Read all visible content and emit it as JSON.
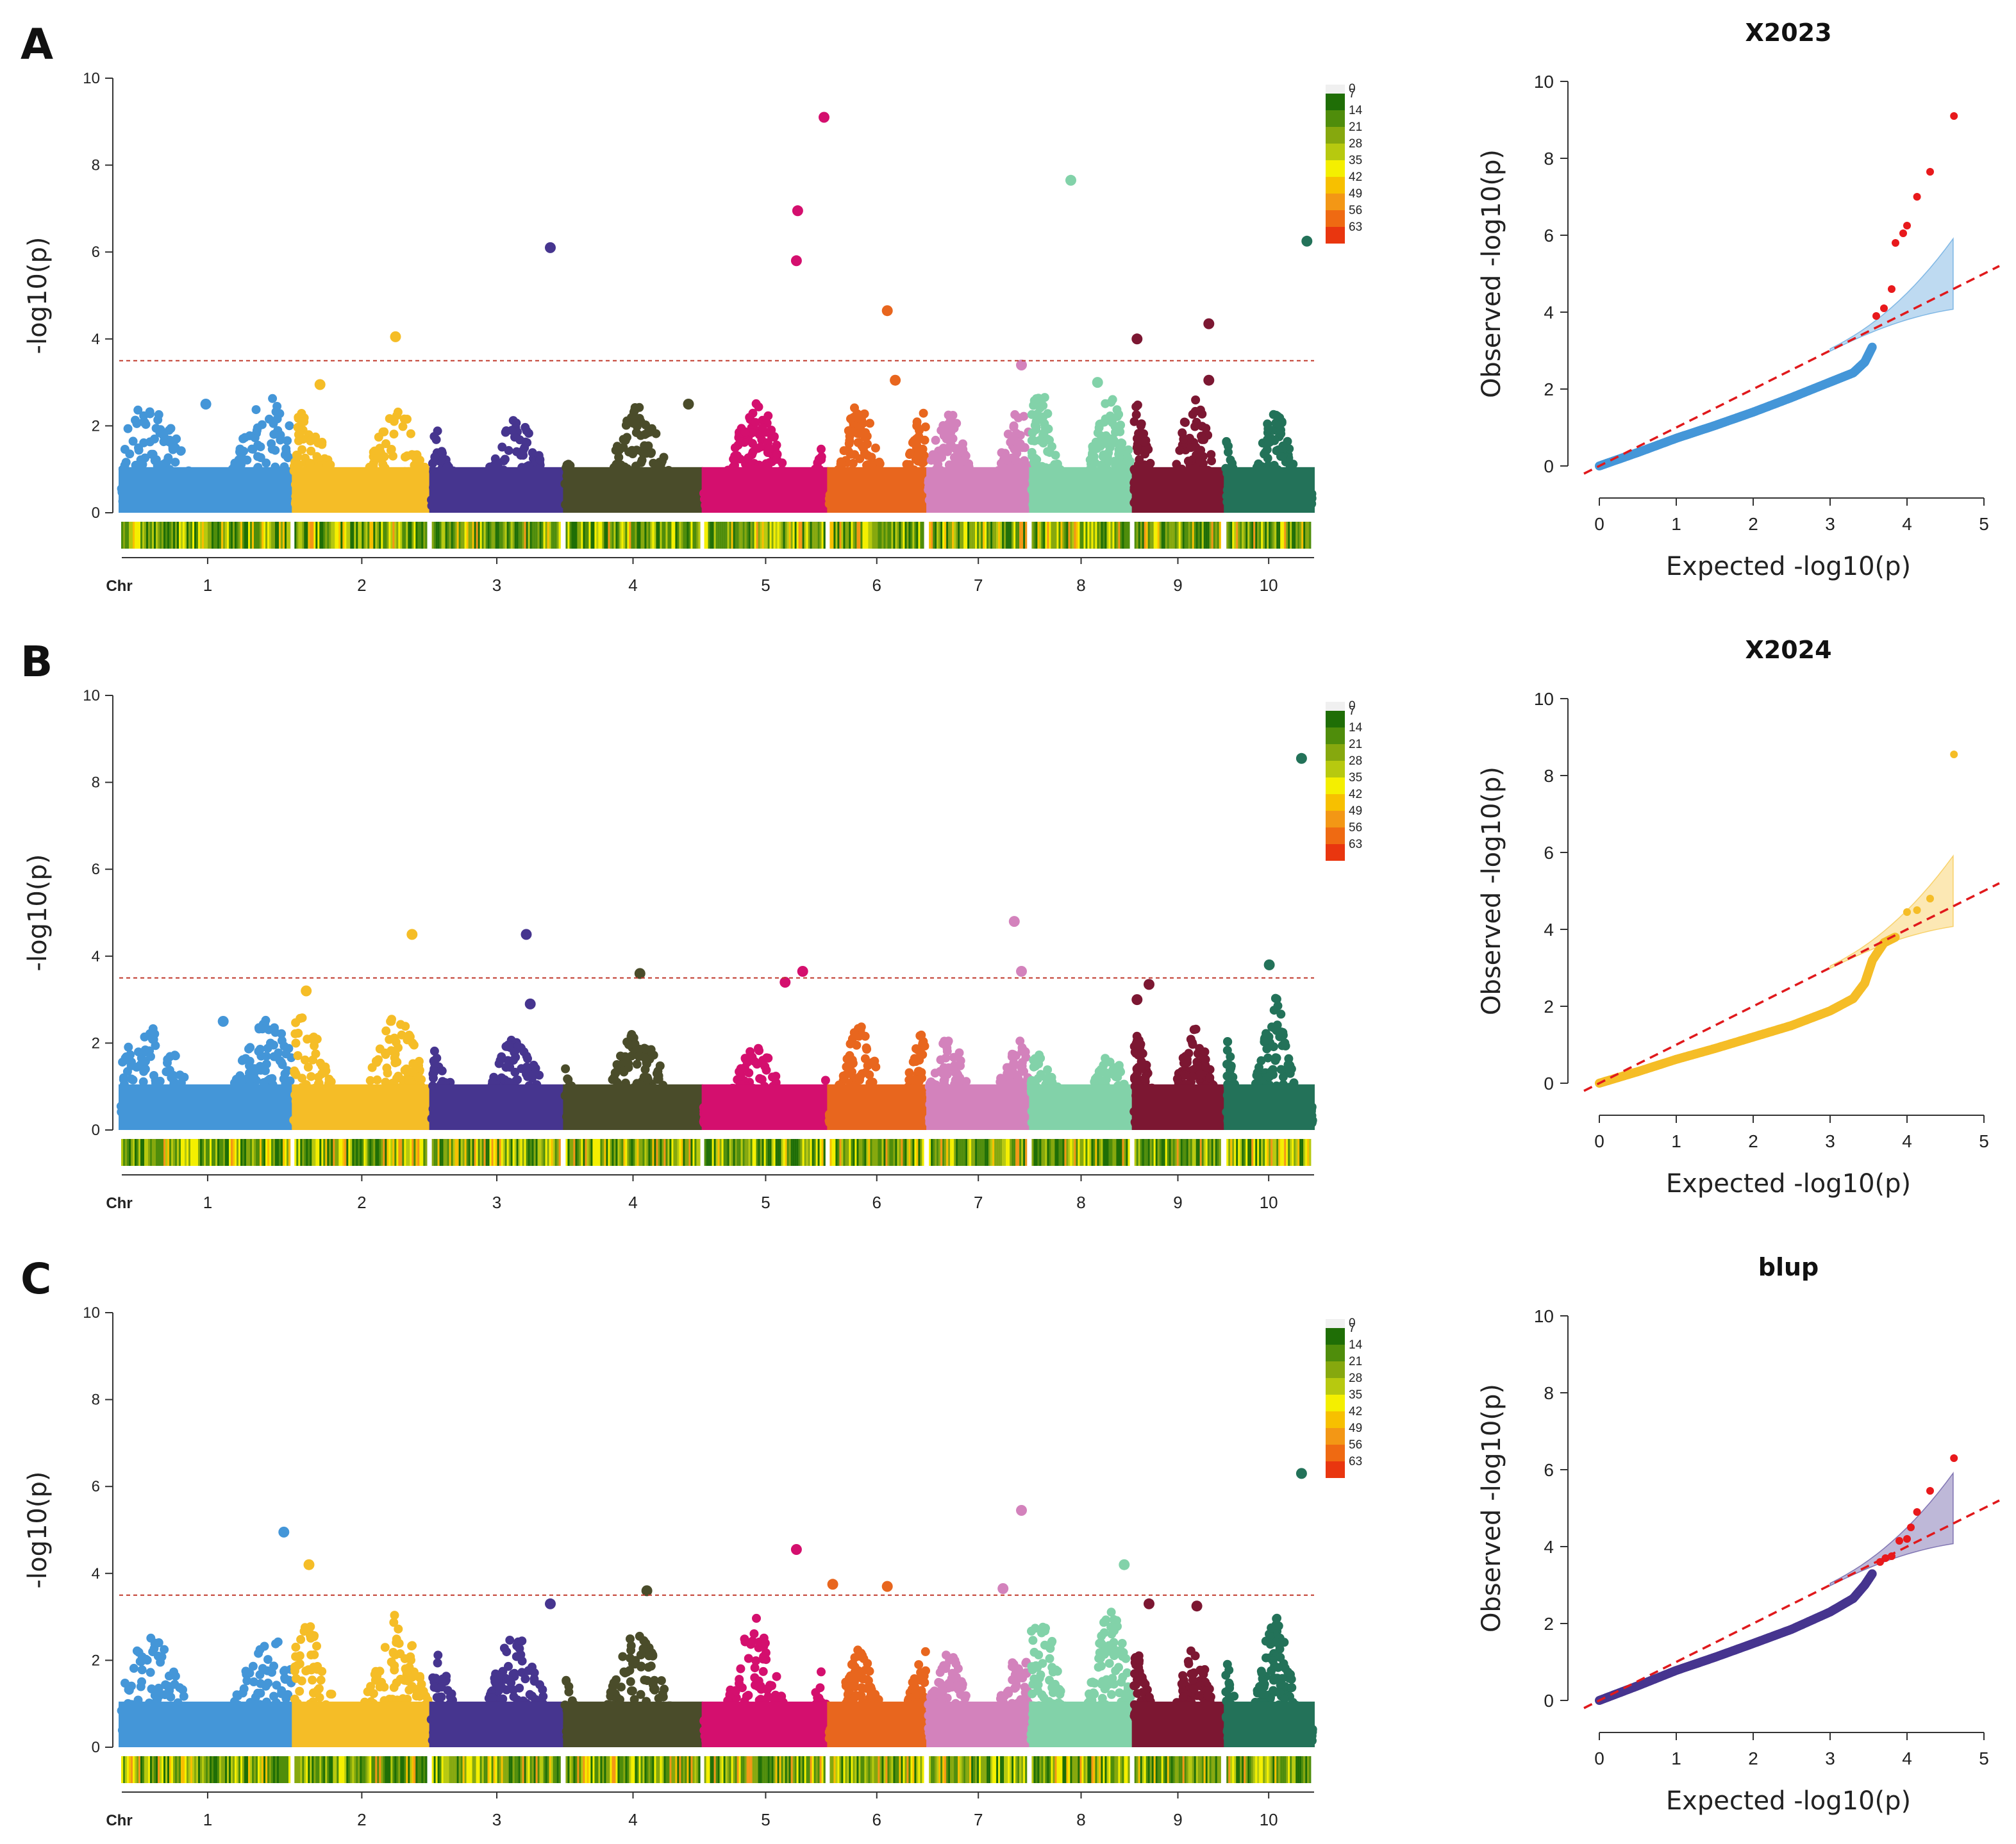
{
  "chromosome_colors": [
    "#4496d8",
    "#f5bd27",
    "#46358f",
    "#4a4c2a",
    "#d40f6e",
    "#e8661e",
    "#d382bc",
    "#82d2a9",
    "#7c1732",
    "#237259"
  ],
  "density_legend": {
    "values": [
      "0",
      "7",
      "14",
      "21",
      "28",
      "35",
      "42",
      "49",
      "56",
      "63"
    ],
    "colors": [
      "#f0f0f0",
      "#1f6e06",
      "#4f8d0b",
      "#86a80e",
      "#b7c90f",
      "#f4ef00",
      "#f7c000",
      "#f39715",
      "#ef6a12",
      "#e9360f"
    ]
  },
  "chart_data": [
    {
      "type": "scatter",
      "name": "manhattan",
      "panel_label": "A",
      "ylabel": "-log10(p)",
      "ylim": [
        0,
        10
      ],
      "yticks": [
        "0",
        "2",
        "4",
        "6",
        "8",
        "10"
      ],
      "threshold": 3.5,
      "chr_axis_title": "Chr",
      "chromosomes": [
        "1",
        "2",
        "3",
        "4",
        "5",
        "6",
        "7",
        "8",
        "9",
        "10"
      ],
      "chromosome_base_max": [
        2.5,
        2.3,
        2.1,
        2.3,
        2.5,
        2.4,
        2.2,
        2.6,
        2.5,
        2.3
      ],
      "highlight_points": [
        {
          "chr": 1,
          "pos": 0.5,
          "y": 2.5
        },
        {
          "chr": 2,
          "pos": 0.2,
          "y": 2.95
        },
        {
          "chr": 2,
          "pos": 0.75,
          "y": 4.05
        },
        {
          "chr": 3,
          "pos": 0.9,
          "y": 6.1
        },
        {
          "chr": 4,
          "pos": 0.9,
          "y": 2.5
        },
        {
          "chr": 5,
          "pos": 0.75,
          "y": 5.8
        },
        {
          "chr": 5,
          "pos": 0.76,
          "y": 6.95
        },
        {
          "chr": 5,
          "pos": 0.97,
          "y": 9.1
        },
        {
          "chr": 6,
          "pos": 0.6,
          "y": 4.65
        },
        {
          "chr": 6,
          "pos": 0.68,
          "y": 3.05
        },
        {
          "chr": 7,
          "pos": 0.92,
          "y": 3.4
        },
        {
          "chr": 8,
          "pos": 0.4,
          "y": 7.65
        },
        {
          "chr": 8,
          "pos": 0.66,
          "y": 3.0
        },
        {
          "chr": 9,
          "pos": 0.05,
          "y": 4.0
        },
        {
          "chr": 9,
          "pos": 0.83,
          "y": 4.35
        },
        {
          "chr": 9,
          "pos": 0.83,
          "y": 3.05
        },
        {
          "chr": 10,
          "pos": 0.92,
          "y": 6.25
        }
      ]
    },
    {
      "type": "scatter",
      "name": "manhattan",
      "panel_label": "B",
      "ylabel": "-log10(p)",
      "ylim": [
        0,
        10
      ],
      "yticks": [
        "0",
        "2",
        "4",
        "6",
        "8",
        "10"
      ],
      "threshold": 3.5,
      "chr_axis_title": "Chr",
      "chromosomes": [
        "1",
        "2",
        "3",
        "4",
        "5",
        "6",
        "7",
        "8",
        "9",
        "10"
      ],
      "chromosome_base_max": [
        2.4,
        2.5,
        2.0,
        2.2,
        1.8,
        2.3,
        2.0,
        1.6,
        2.2,
        2.9
      ],
      "highlight_points": [
        {
          "chr": 1,
          "pos": 0.6,
          "y": 2.5
        },
        {
          "chr": 2,
          "pos": 0.1,
          "y": 3.2
        },
        {
          "chr": 2,
          "pos": 0.87,
          "y": 4.5
        },
        {
          "chr": 3,
          "pos": 0.72,
          "y": 4.5
        },
        {
          "chr": 3,
          "pos": 0.75,
          "y": 2.9
        },
        {
          "chr": 4,
          "pos": 0.55,
          "y": 3.6
        },
        {
          "chr": 5,
          "pos": 0.66,
          "y": 3.4
        },
        {
          "chr": 5,
          "pos": 0.8,
          "y": 3.65
        },
        {
          "chr": 7,
          "pos": 0.85,
          "y": 4.8
        },
        {
          "chr": 7,
          "pos": 0.92,
          "y": 3.65
        },
        {
          "chr": 9,
          "pos": 0.05,
          "y": 3.0
        },
        {
          "chr": 9,
          "pos": 0.18,
          "y": 3.35
        },
        {
          "chr": 10,
          "pos": 0.5,
          "y": 3.8
        },
        {
          "chr": 10,
          "pos": 0.86,
          "y": 8.55
        }
      ]
    },
    {
      "type": "scatter",
      "name": "manhattan",
      "panel_label": "C",
      "ylabel": "-log10(p)",
      "ylim": [
        0,
        10
      ],
      "yticks": [
        "0",
        "2",
        "4",
        "6",
        "8",
        "10"
      ],
      "threshold": 3.5,
      "chr_axis_title": "Chr",
      "chromosomes": [
        "1",
        "2",
        "3",
        "4",
        "5",
        "6",
        "7",
        "8",
        "9",
        "10"
      ],
      "chromosome_base_max": [
        2.4,
        2.9,
        2.6,
        2.6,
        2.9,
        2.1,
        2.0,
        3.0,
        2.2,
        2.9
      ],
      "highlight_points": [
        {
          "chr": 1,
          "pos": 0.95,
          "y": 4.95
        },
        {
          "chr": 2,
          "pos": 0.12,
          "y": 4.2
        },
        {
          "chr": 3,
          "pos": 0.9,
          "y": 3.3
        },
        {
          "chr": 4,
          "pos": 0.6,
          "y": 3.6
        },
        {
          "chr": 5,
          "pos": 0.75,
          "y": 4.55
        },
        {
          "chr": 6,
          "pos": 0.05,
          "y": 3.75
        },
        {
          "chr": 6,
          "pos": 0.6,
          "y": 3.7
        },
        {
          "chr": 7,
          "pos": 0.74,
          "y": 3.65
        },
        {
          "chr": 7,
          "pos": 0.92,
          "y": 5.45
        },
        {
          "chr": 8,
          "pos": 0.92,
          "y": 4.2
        },
        {
          "chr": 9,
          "pos": 0.18,
          "y": 3.3
        },
        {
          "chr": 9,
          "pos": 0.7,
          "y": 3.25
        },
        {
          "chr": 10,
          "pos": 0.86,
          "y": 6.3
        }
      ]
    },
    {
      "type": "scatter",
      "name": "qq",
      "title": "X2023",
      "xlabel": "Expected  -log10(p)",
      "ylabel": "Observed  -log10(p)",
      "xlim": [
        0,
        5
      ],
      "ylim": [
        0,
        10
      ],
      "xticks": [
        "0",
        "1",
        "2",
        "3",
        "4",
        "5"
      ],
      "yticks": [
        "0",
        "2",
        "4",
        "6",
        "8",
        "10"
      ],
      "color": "#4496d8",
      "band_color": "#4496d8",
      "curve": [
        [
          0,
          0
        ],
        [
          0.5,
          0.35
        ],
        [
          1,
          0.72
        ],
        [
          1.5,
          1.05
        ],
        [
          2,
          1.4
        ],
        [
          2.5,
          1.78
        ],
        [
          3,
          2.18
        ],
        [
          3.3,
          2.42
        ],
        [
          3.45,
          2.7
        ],
        [
          3.55,
          3.1
        ]
      ],
      "signif_points": [
        [
          3.6,
          3.9
        ],
        [
          3.7,
          4.1
        ],
        [
          3.8,
          4.6
        ],
        [
          3.85,
          5.8
        ],
        [
          3.95,
          6.05
        ],
        [
          4.0,
          6.25
        ],
        [
          4.13,
          7.0
        ],
        [
          4.3,
          7.65
        ],
        [
          4.61,
          9.1
        ]
      ],
      "signif_color": "#e8191c"
    },
    {
      "type": "scatter",
      "name": "qq",
      "title": "X2024",
      "xlabel": "Expected  -log10(p)",
      "ylabel": "Observed  -log10(p)",
      "xlim": [
        0,
        5
      ],
      "ylim": [
        0,
        10
      ],
      "xticks": [
        "0",
        "1",
        "2",
        "3",
        "4",
        "5"
      ],
      "yticks": [
        "0",
        "2",
        "4",
        "6",
        "8",
        "10"
      ],
      "color": "#f5bd27",
      "band_color": "#f5bd27",
      "curve": [
        [
          0,
          0
        ],
        [
          0.5,
          0.3
        ],
        [
          1,
          0.62
        ],
        [
          1.5,
          0.9
        ],
        [
          2,
          1.2
        ],
        [
          2.5,
          1.5
        ],
        [
          3,
          1.88
        ],
        [
          3.3,
          2.2
        ],
        [
          3.45,
          2.6
        ],
        [
          3.55,
          3.2
        ],
        [
          3.7,
          3.65
        ],
        [
          3.85,
          3.8
        ]
      ],
      "signif_points": [
        [
          4.0,
          4.45
        ],
        [
          4.13,
          4.5
        ],
        [
          4.3,
          4.8
        ],
        [
          4.61,
          8.55
        ]
      ],
      "signif_color": "#f5bd27"
    },
    {
      "type": "scatter",
      "name": "qq",
      "title": "blup",
      "xlabel": "Expected  -log10(p)",
      "ylabel": "Observed  -log10(p)",
      "xlim": [
        0,
        5
      ],
      "ylim": [
        0,
        10
      ],
      "xticks": [
        "0",
        "1",
        "2",
        "3",
        "4",
        "5"
      ],
      "yticks": [
        "0",
        "2",
        "4",
        "6",
        "8",
        "10"
      ],
      "color": "#46358f",
      "band_color": "#46358f",
      "curve": [
        [
          0,
          0
        ],
        [
          0.5,
          0.38
        ],
        [
          1,
          0.78
        ],
        [
          1.5,
          1.12
        ],
        [
          2,
          1.48
        ],
        [
          2.5,
          1.85
        ],
        [
          3,
          2.3
        ],
        [
          3.3,
          2.65
        ],
        [
          3.45,
          3.0
        ],
        [
          3.55,
          3.3
        ]
      ],
      "signif_points": [
        [
          3.65,
          3.6
        ],
        [
          3.72,
          3.7
        ],
        [
          3.8,
          3.75
        ],
        [
          3.9,
          4.15
        ],
        [
          4.0,
          4.2
        ],
        [
          4.05,
          4.5
        ],
        [
          4.13,
          4.9
        ],
        [
          4.3,
          5.45
        ],
        [
          4.61,
          6.3
        ]
      ],
      "signif_color": "#e8191c"
    }
  ]
}
